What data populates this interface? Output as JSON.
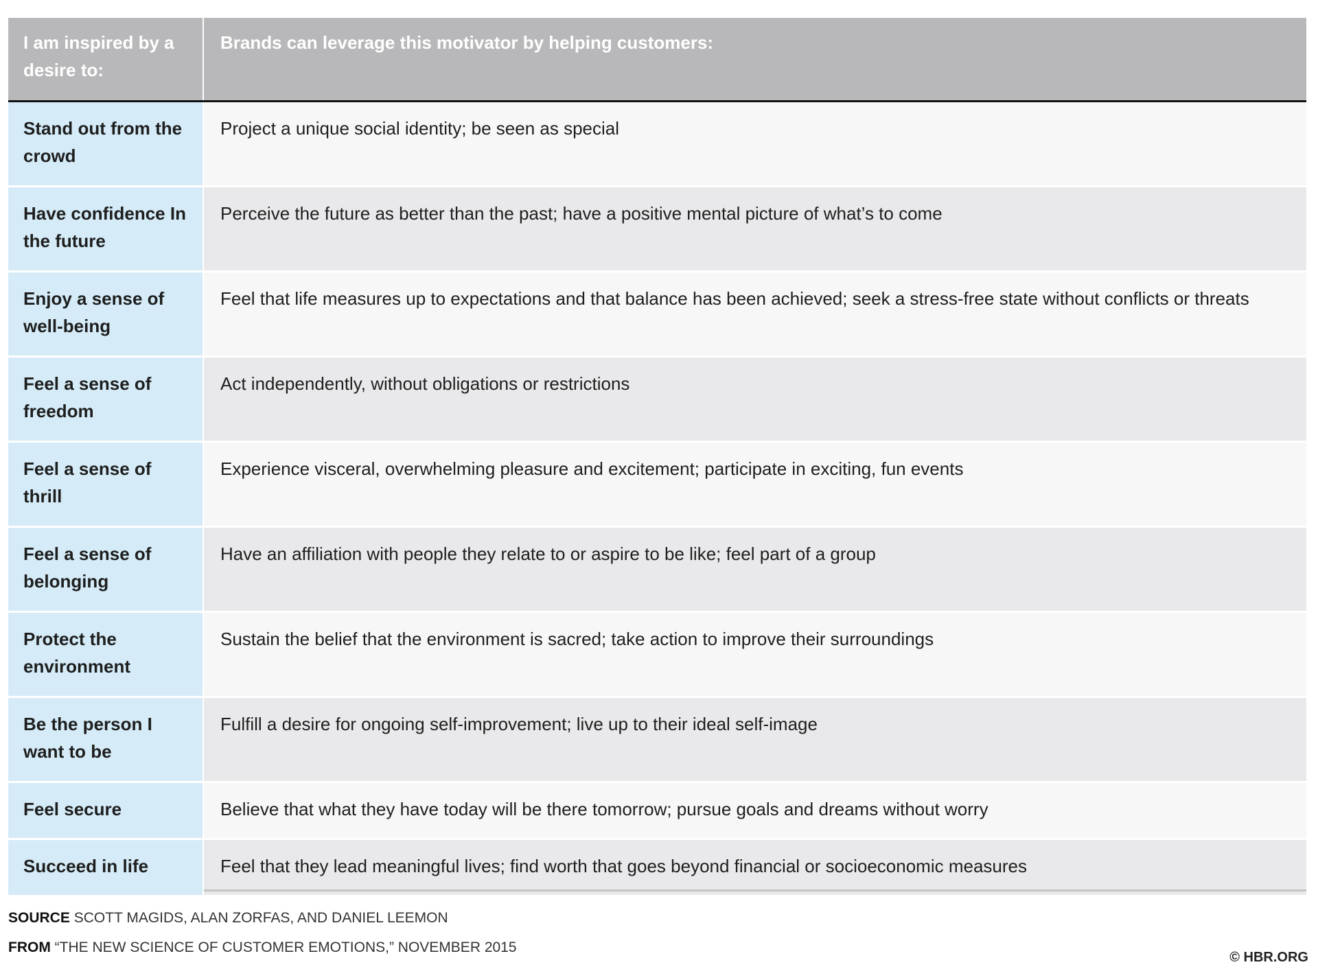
{
  "header": {
    "col1": "I am inspired by a desire to:",
    "col2": "Brands can leverage this motivator by helping customers:"
  },
  "rows": [
    {
      "motivator": "Stand out from the crowd",
      "leverage": "Project a unique social identity; be seen as special"
    },
    {
      "motivator": "Have confidence In the future",
      "leverage": "Perceive the future as better than the past; have a positive mental picture of what’s to come"
    },
    {
      "motivator": "Enjoy a sense of well-being",
      "leverage": "Feel that life measures up to expectations and that balance has been achieved; seek a stress-free state without conflicts or threats"
    },
    {
      "motivator": "Feel a sense of freedom",
      "leverage": "Act independently, without obligations or restrictions"
    },
    {
      "motivator": "Feel a sense of thrill",
      "leverage": "Experience visceral, overwhelming pleasure and excitement; participate in exciting, fun events"
    },
    {
      "motivator": "Feel a sense of belonging",
      "leverage": "Have an affiliation with people they relate to or aspire to be like; feel part of a group"
    },
    {
      "motivator": "Protect the environment",
      "leverage": "Sustain the belief that the environment is sacred; take action to improve their surroundings"
    },
    {
      "motivator": "Be the person I want to be",
      "leverage": "Fulfill a desire for ongoing self-improvement; live up to their ideal self-image"
    },
    {
      "motivator": "Feel secure",
      "leverage": "Believe that what they have today will be there tomorrow; pursue goals and dreams without worry"
    },
    {
      "motivator": "Succeed in life",
      "leverage": "Feel that they lead meaningful lives; find worth that goes beyond financial or socioeconomic measures"
    }
  ],
  "footer": {
    "source_label": "SOURCE",
    "source_text": "Scott Magids, Alan Zorfas, and Daniel Leemon",
    "from_label": "FROM",
    "from_text": "“The New Science of Customer Emotions,” November 2015",
    "copyright": "© HBR.ORG"
  },
  "colors": {
    "header": "#b8b8ba",
    "motivator_cell": "#d5ecf8",
    "row_dark": "#e9e9eb",
    "row_light": "#f7f7f7"
  }
}
